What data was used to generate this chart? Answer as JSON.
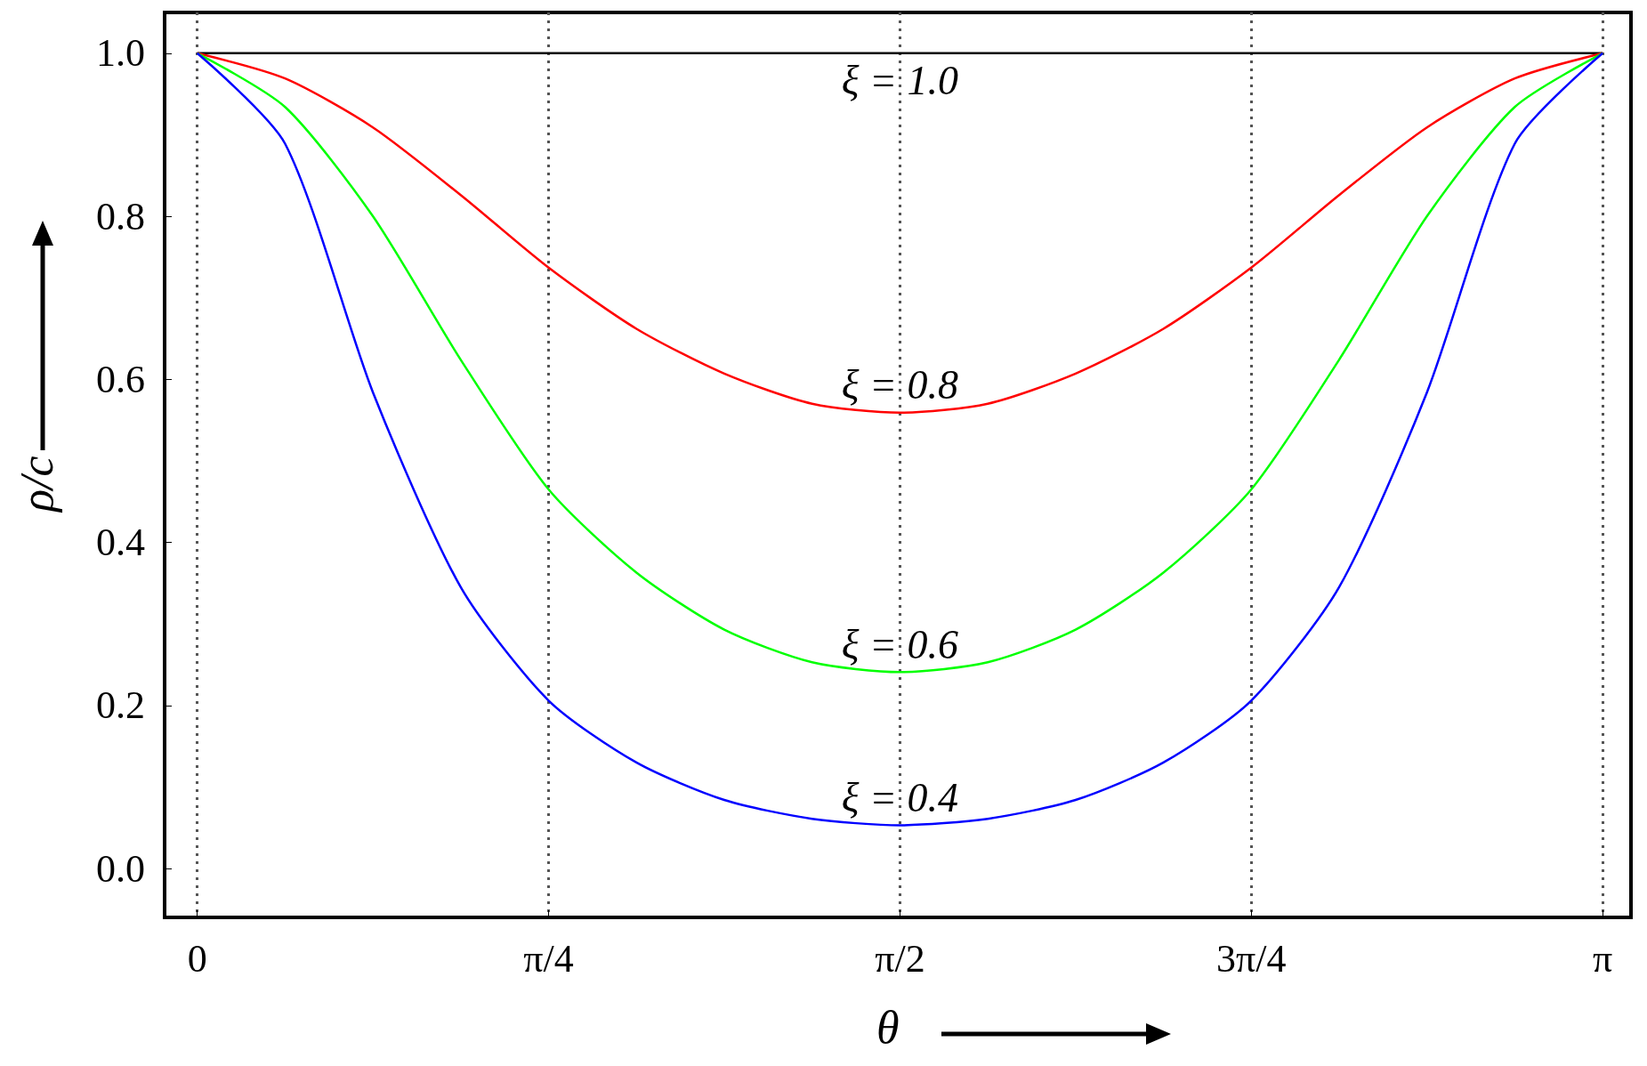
{
  "chart_data": {
    "type": "line",
    "xlabel": "θ",
    "ylabel": "ρ/c",
    "x": [
      0,
      0.1963,
      0.3927,
      0.589,
      0.7854,
      0.9817,
      1.1781,
      1.3744,
      1.5708,
      1.7671,
      1.9635,
      2.1598,
      2.3562,
      2.5525,
      2.7489,
      2.9452,
      3.1416
    ],
    "series": [
      {
        "name": "ξ = 1.0",
        "color": "#000000",
        "values": [
          1.0,
          1.0,
          1.0,
          1.0,
          1.0,
          1.0,
          1.0,
          1.0,
          1.0,
          1.0,
          1.0,
          1.0,
          1.0,
          1.0,
          1.0,
          1.0,
          1.0
        ]
      },
      {
        "name": "ξ = 0.8",
        "color": "#ff0000",
        "values": [
          1.0,
          0.969,
          0.909,
          0.826,
          0.737,
          0.662,
          0.607,
          0.57,
          0.559,
          0.57,
          0.607,
          0.662,
          0.737,
          0.826,
          0.909,
          0.969,
          1.0
        ]
      },
      {
        "name": "ξ = 0.6",
        "color": "#00ff00",
        "values": [
          1.0,
          0.934,
          0.8,
          0.624,
          0.465,
          0.363,
          0.293,
          0.253,
          0.241,
          0.253,
          0.293,
          0.363,
          0.465,
          0.624,
          0.8,
          0.934,
          1.0
        ]
      },
      {
        "name": "ξ = 0.4",
        "color": "#0000ff",
        "values": [
          1.0,
          0.889,
          0.584,
          0.345,
          0.206,
          0.13,
          0.084,
          0.061,
          0.053,
          0.061,
          0.084,
          0.13,
          0.206,
          0.345,
          0.584,
          0.889,
          1.0
        ]
      }
    ],
    "xlim": [
      -0.073,
      3.205
    ],
    "ylim": [
      -0.06,
      1.05
    ],
    "xticks": [
      0,
      {
        "value": 0.7854,
        "label": "π/4"
      },
      {
        "value": 1.5708,
        "label": "π/2"
      },
      {
        "value": 2.3562,
        "label": "3π/4"
      },
      {
        "value": 3.1416,
        "label": "π"
      }
    ],
    "yticks": [
      {
        "value": 0,
        "label": "0.0"
      },
      0.2,
      0.4,
      0.6,
      0.8,
      {
        "value": 1,
        "label": "1.0"
      }
    ],
    "grid": "x",
    "marker": "none",
    "line_style": "solid"
  }
}
